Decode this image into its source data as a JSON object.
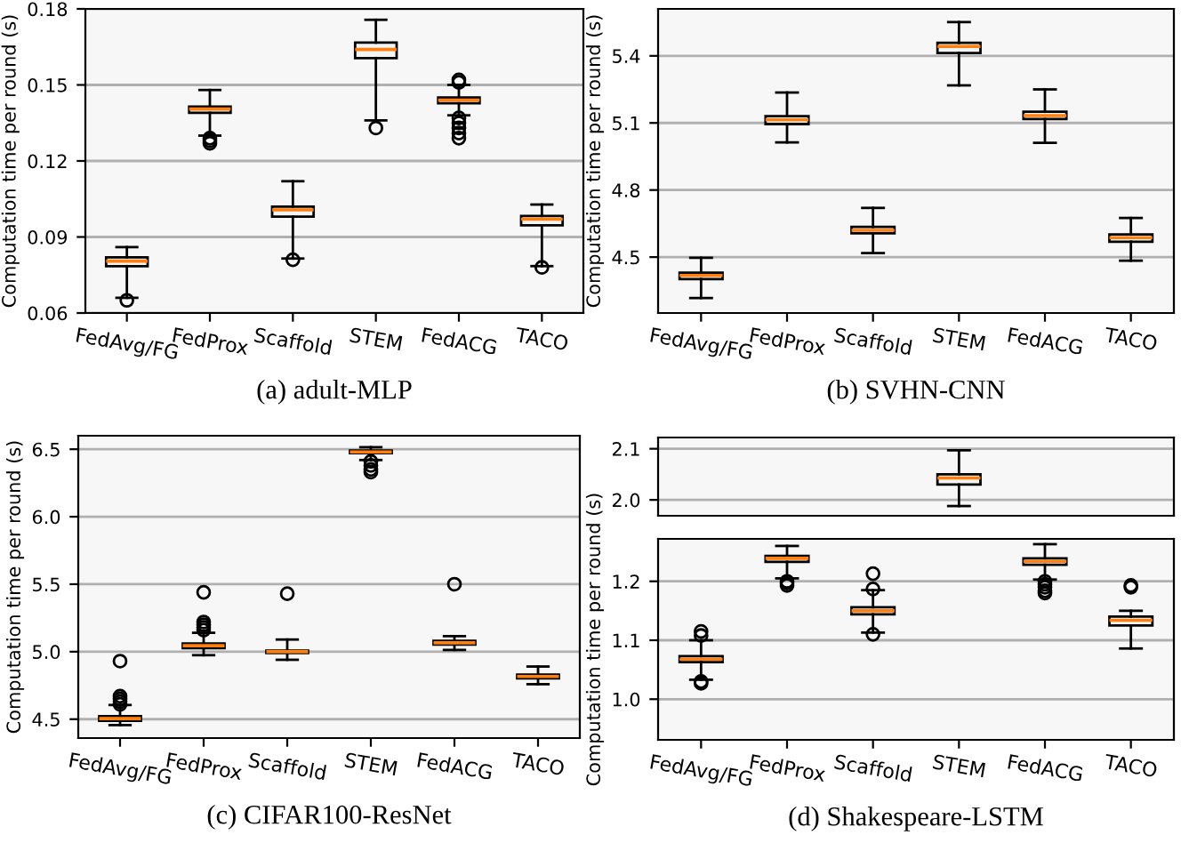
{
  "chart_data": [
    {
      "type": "box",
      "title": "(a) adult-MLP",
      "ylabel": "Computation time per round (s)",
      "categories": [
        "FedAvg/FG",
        "FedProx",
        "Scaffold",
        "STEM",
        "FedACG",
        "TACO"
      ],
      "ylim": [
        0.06,
        0.18
      ],
      "yticks": [
        0.06,
        0.09,
        0.12,
        0.15,
        0.18
      ],
      "grid": "y",
      "boxes": [
        {
          "low": 0.066,
          "q1": 0.0785,
          "median": 0.0805,
          "q3": 0.082,
          "high": 0.086,
          "outliers": [
            0.065
          ]
        },
        {
          "low": 0.13,
          "q1": 0.139,
          "median": 0.1405,
          "q3": 0.1414,
          "high": 0.148,
          "outliers": [
            0.129,
            0.128,
            0.127
          ]
        },
        {
          "low": 0.0815,
          "q1": 0.098,
          "median": 0.1007,
          "q3": 0.102,
          "high": 0.112,
          "outliers": [
            0.081
          ]
        },
        {
          "low": 0.136,
          "q1": 0.1606,
          "median": 0.164,
          "q3": 0.1667,
          "high": 0.1757,
          "outliers": [
            0.133
          ]
        },
        {
          "low": 0.138,
          "q1": 0.1428,
          "median": 0.144,
          "q3": 0.145,
          "high": 0.15,
          "outliers": [
            0.152,
            0.151,
            0.137,
            0.135,
            0.133,
            0.131,
            0.129
          ]
        },
        {
          "low": 0.0785,
          "q1": 0.0946,
          "median": 0.097,
          "q3": 0.0983,
          "high": 0.1028,
          "outliers": [
            0.078
          ]
        }
      ]
    },
    {
      "type": "box",
      "title": "(b) SVHN-CNN",
      "ylabel": "Computation time per round (s)",
      "categories": [
        "FedAvg/FG",
        "FedProx",
        "Scaffold",
        "STEM",
        "FedACG",
        "TACO"
      ],
      "ylim": [
        4.25,
        5.61
      ],
      "yticks": [
        4.5,
        4.8,
        5.1,
        5.4
      ],
      "grid": "y",
      "boxes": [
        {
          "low": 4.317,
          "q1": 4.402,
          "median": 4.418,
          "q3": 4.43,
          "high": 4.497
        },
        {
          "low": 5.013,
          "q1": 5.095,
          "median": 5.114,
          "q3": 5.13,
          "high": 5.236
        },
        {
          "low": 4.518,
          "q1": 4.606,
          "median": 4.62,
          "q3": 4.635,
          "high": 4.72
        },
        {
          "low": 5.268,
          "q1": 5.413,
          "median": 5.442,
          "q3": 5.458,
          "high": 5.551
        },
        {
          "low": 5.011,
          "q1": 5.117,
          "median": 5.133,
          "q3": 5.15,
          "high": 5.25
        },
        {
          "low": 4.484,
          "q1": 4.569,
          "median": 4.587,
          "q3": 4.601,
          "high": 4.675
        }
      ]
    },
    {
      "type": "box",
      "title": "(c) CIFAR100-ResNet",
      "ylabel": "Computation time per round (s)",
      "categories": [
        "FedAvg/FG",
        "FedProx",
        "Scaffold",
        "STEM",
        "FedACG",
        "TACO"
      ],
      "ylim": [
        4.36,
        6.6
      ],
      "yticks": [
        4.5,
        {
          "value": 5.0,
          "label": "5.0"
        },
        5.5,
        {
          "value": 6.0,
          "label": "6.0"
        },
        6.5
      ],
      "grid": "y",
      "boxes": [
        {
          "low": 4.456,
          "q1": 4.487,
          "median": 4.504,
          "q3": 4.522,
          "high": 4.605,
          "outliers": [
            4.93,
            4.67,
            4.65,
            4.63,
            4.61
          ]
        },
        {
          "low": 4.974,
          "q1": 5.026,
          "median": 5.044,
          "q3": 5.061,
          "high": 5.14,
          "outliers": [
            5.44,
            5.22,
            5.2,
            5.18,
            5.16
          ]
        },
        {
          "low": 4.94,
          "q1": 4.99,
          "median": 5.0,
          "q3": 5.008,
          "high": 5.09,
          "outliers": [
            5.43
          ]
        },
        {
          "low": 6.42,
          "q1": 6.47,
          "median": 6.48,
          "q3": 6.49,
          "high": 6.515,
          "outliers": [
            6.41,
            6.38,
            6.35,
            6.33
          ]
        },
        {
          "low": 5.013,
          "q1": 5.053,
          "median": 5.066,
          "q3": 5.08,
          "high": 5.115,
          "outliers": [
            5.5
          ]
        },
        {
          "low": 4.759,
          "q1": 4.803,
          "median": 4.816,
          "q3": 4.83,
          "high": 4.89
        }
      ]
    },
    {
      "type": "box",
      "categories": [
        null,
        null,
        null,
        null,
        null,
        null
      ],
      "ylim": [
        1.969,
        2.122
      ],
      "yticks": [
        {
          "value": 2.0,
          "label": "2.0"
        },
        2.1
      ],
      "grid": "y",
      "tick_labels": "y",
      "boxes": [
        null,
        null,
        null,
        {
          "low": 1.988,
          "q1": 2.03,
          "median": 2.043,
          "q3": 2.05,
          "high": 2.097
        },
        null,
        null
      ]
    },
    {
      "type": "box",
      "title": "(d) Shakespeare-LSTM",
      "ylabel": "Computation time per round (s)",
      "categories": [
        "FedAvg/FG",
        "FedProx",
        "Scaffold",
        "STEM",
        "FedACG",
        "TACO"
      ],
      "ylim": [
        0.931,
        1.272
      ],
      "yticks": [
        {
          "value": 1.0,
          "label": "1.0"
        },
        1.1,
        1.2
      ],
      "grid": "y",
      "boxes": [
        {
          "low": 1.033,
          "q1": 1.063,
          "median": 1.068,
          "q3": 1.073,
          "high": 1.1,
          "outliers": [
            1.115,
            1.108,
            1.03,
            1.027
          ]
        },
        {
          "low": 1.205,
          "q1": 1.233,
          "median": 1.239,
          "q3": 1.243,
          "high": 1.26,
          "outliers": [
            1.2,
            1.197,
            1.193
          ]
        },
        {
          "low": 1.113,
          "q1": 1.144,
          "median": 1.15,
          "q3": 1.156,
          "high": 1.185,
          "outliers": [
            1.213,
            1.187,
            1.11
          ]
        },
        null,
        {
          "low": 1.203,
          "q1": 1.228,
          "median": 1.234,
          "q3": 1.239,
          "high": 1.263,
          "outliers": [
            1.2,
            1.195,
            1.19,
            1.184,
            1.18
          ]
        },
        {
          "low": 1.086,
          "q1": 1.125,
          "median": 1.134,
          "q3": 1.14,
          "high": 1.15,
          "outliers": [
            1.193,
            1.19
          ]
        }
      ]
    }
  ]
}
